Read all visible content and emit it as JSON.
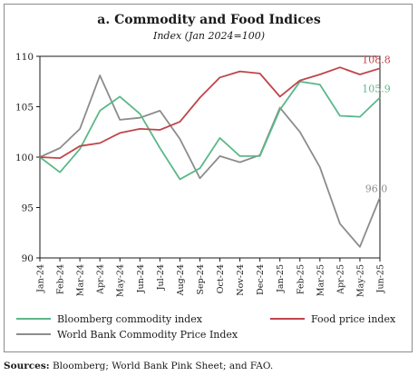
{
  "chart_data": {
    "type": "line",
    "title": "a. Commodity and Food Indices",
    "subtitle": "Index (Jan 2024=100)",
    "categories": [
      "Jan-24",
      "Feb-24",
      "Mar-24",
      "Apr-24",
      "May-24",
      "Jun-24",
      "Jul-24",
      "Aug-24",
      "Sep-24",
      "Oct-24",
      "Nov-24",
      "Dec-24",
      "Jan-25",
      "Feb-25",
      "Mar-25",
      "Apr-25",
      "May-25",
      "Jun-25"
    ],
    "ylim": [
      90,
      110
    ],
    "yticks": [
      "90",
      "95",
      "100",
      "105",
      "110"
    ],
    "grid": false,
    "legend_position": "bottom",
    "series": [
      {
        "name": "Bloomberg commodity index",
        "color": "#5cb88a",
        "values": [
          100,
          98.5,
          100.8,
          104.6,
          106.0,
          104.3,
          100.9,
          97.8,
          98.9,
          101.9,
          100.1,
          100.1,
          104.7,
          107.5,
          107.2,
          104.1,
          104.0,
          105.9
        ],
        "end_label": "105.9"
      },
      {
        "name": "Food price index",
        "color": "#c0454a",
        "values": [
          100,
          99.9,
          101.1,
          101.4,
          102.4,
          102.8,
          102.7,
          103.5,
          105.9,
          107.9,
          108.5,
          108.3,
          106.0,
          107.6,
          108.2,
          108.9,
          108.2,
          108.8
        ],
        "end_label": "108.8"
      },
      {
        "name": "World Bank Commodity Price Index",
        "color": "#8c8c8c",
        "values": [
          100,
          100.9,
          102.8,
          108.1,
          103.7,
          103.9,
          104.6,
          101.8,
          97.9,
          100.1,
          99.5,
          100.2,
          104.9,
          102.5,
          99.0,
          93.4,
          91.1,
          96.0
        ],
        "end_label": "96.0"
      }
    ]
  },
  "source": {
    "label": "Sources:",
    "text": " Bloomberg; World Bank Pink Sheet; and FAO."
  }
}
